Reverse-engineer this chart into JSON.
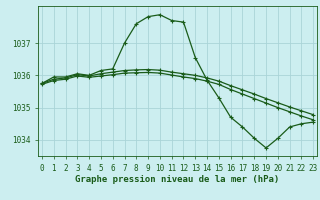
{
  "title": "Graphe pression niveau de la mer (hPa)",
  "background_color": "#cceef0",
  "grid_color": "#aad4d8",
  "line_color": "#1a5c1a",
  "x_values": [
    0,
    1,
    2,
    3,
    4,
    5,
    6,
    7,
    8,
    9,
    10,
    11,
    12,
    13,
    14,
    15,
    16,
    17,
    18,
    19,
    20,
    21,
    22,
    23
  ],
  "series1": [
    1035.75,
    1035.95,
    1035.95,
    1036.05,
    1036.0,
    1036.15,
    1036.2,
    1037.0,
    1037.6,
    1037.82,
    1037.88,
    1037.7,
    1037.65,
    1036.55,
    1035.85,
    1035.3,
    1034.7,
    1034.4,
    1034.05,
    1033.75,
    1034.05,
    1034.4,
    1034.5,
    1034.55
  ],
  "series2": [
    1035.75,
    1035.88,
    1035.92,
    1036.02,
    1035.98,
    1036.05,
    1036.1,
    1036.15,
    1036.17,
    1036.18,
    1036.16,
    1036.1,
    1036.05,
    1036.0,
    1035.92,
    1035.82,
    1035.68,
    1035.55,
    1035.42,
    1035.28,
    1035.15,
    1035.02,
    1034.9,
    1034.78
  ],
  "series3": [
    1035.72,
    1035.84,
    1035.88,
    1035.98,
    1035.94,
    1035.98,
    1036.02,
    1036.07,
    1036.08,
    1036.09,
    1036.07,
    1036.01,
    1035.95,
    1035.9,
    1035.82,
    1035.72,
    1035.56,
    1035.42,
    1035.28,
    1035.14,
    1035.0,
    1034.87,
    1034.74,
    1034.62
  ],
  "ylim": [
    1033.5,
    1038.15
  ],
  "yticks": [
    1034,
    1035,
    1036,
    1037
  ],
  "xlim": [
    -0.3,
    23.3
  ],
  "xticks": [
    0,
    1,
    2,
    3,
    4,
    5,
    6,
    7,
    8,
    9,
    10,
    11,
    12,
    13,
    14,
    15,
    16,
    17,
    18,
    19,
    20,
    21,
    22,
    23
  ],
  "title_fontsize": 6.5,
  "tick_fontsize": 5.5
}
